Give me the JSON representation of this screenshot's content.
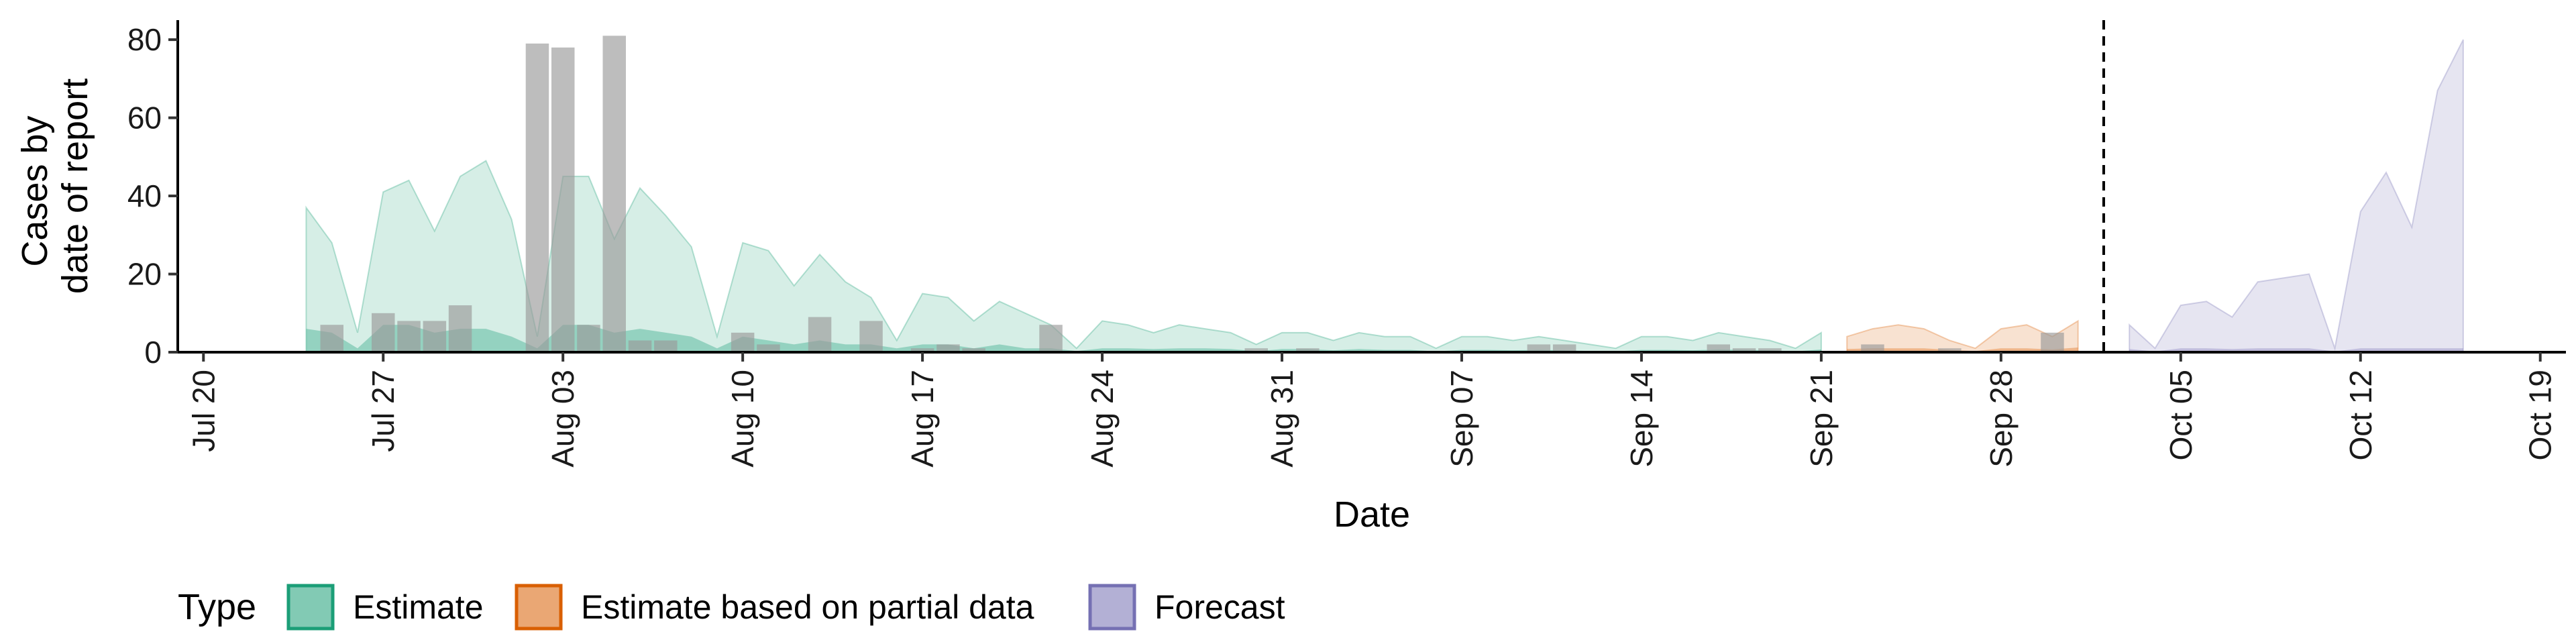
{
  "chart_data": {
    "type": "area",
    "title": "",
    "xlabel": "Date",
    "ylabel_lines": [
      "Cases by",
      "date of report"
    ],
    "ylim": [
      0,
      85
    ],
    "yticks": [
      0,
      20,
      40,
      60,
      80
    ],
    "xlim": [
      "2020-07-19",
      "2020-10-20"
    ],
    "x_tick_labels": [
      "Jul 20",
      "Jul 27",
      "Aug 03",
      "Aug 10",
      "Aug 17",
      "Aug 24",
      "Aug 31",
      "Sep 07",
      "Sep 14",
      "Sep 21",
      "Sep 28",
      "Oct 05",
      "Oct 12",
      "Oct 19"
    ],
    "x_tick_dates": [
      "2020-07-20",
      "2020-07-27",
      "2020-08-03",
      "2020-08-10",
      "2020-08-17",
      "2020-08-24",
      "2020-08-31",
      "2020-09-07",
      "2020-09-14",
      "2020-09-21",
      "2020-09-28",
      "2020-10-05",
      "2020-10-12",
      "2020-10-19"
    ],
    "forecast_date_line": "2020-10-02",
    "legend": {
      "title": "Type",
      "position": "bottom",
      "items": [
        {
          "label": "Estimate",
          "color": "#1b9e77"
        },
        {
          "label": "Estimate based on partial data",
          "color": "#d95f02"
        },
        {
          "label": "Forecast",
          "color": "#7570b3"
        }
      ]
    },
    "series": [
      {
        "type": "Estimate",
        "color": "#1b9e77",
        "dates": [
          "2020-07-24",
          "2020-07-25",
          "2020-07-26",
          "2020-07-27",
          "2020-07-28",
          "2020-07-29",
          "2020-07-30",
          "2020-07-31",
          "2020-08-01",
          "2020-08-02",
          "2020-08-03",
          "2020-08-04",
          "2020-08-05",
          "2020-08-06",
          "2020-08-07",
          "2020-08-08",
          "2020-08-09",
          "2020-08-10",
          "2020-08-11",
          "2020-08-12",
          "2020-08-13",
          "2020-08-14",
          "2020-08-15",
          "2020-08-16",
          "2020-08-17",
          "2020-08-18",
          "2020-08-19",
          "2020-08-20",
          "2020-08-21",
          "2020-08-22",
          "2020-08-23",
          "2020-08-24",
          "2020-08-25",
          "2020-08-26",
          "2020-08-27",
          "2020-08-28",
          "2020-08-29",
          "2020-08-30",
          "2020-08-31",
          "2020-09-01",
          "2020-09-02",
          "2020-09-03",
          "2020-09-04",
          "2020-09-05",
          "2020-09-06",
          "2020-09-07",
          "2020-09-08",
          "2020-09-09",
          "2020-09-10",
          "2020-09-11",
          "2020-09-12",
          "2020-09-13",
          "2020-09-14",
          "2020-09-15",
          "2020-09-16",
          "2020-09-17",
          "2020-09-18",
          "2020-09-19",
          "2020-09-20",
          "2020-09-21"
        ],
        "upper": [
          37,
          28,
          5,
          41,
          44,
          31,
          45,
          49,
          34,
          4,
          45,
          45,
          29,
          42,
          35,
          27,
          4,
          28,
          26,
          17,
          25,
          18,
          14,
          3,
          15,
          14,
          8,
          13,
          10,
          7,
          1,
          8,
          7,
          5,
          7,
          6,
          5,
          2,
          5,
          5,
          3,
          5,
          4,
          4,
          1,
          4,
          4,
          3,
          4,
          3,
          2,
          1,
          4,
          4,
          3,
          5,
          4,
          3,
          1,
          5
        ],
        "lower": [
          0,
          0,
          0,
          0,
          0,
          0,
          0,
          0,
          0,
          0,
          0,
          0,
          0,
          0,
          0,
          0,
          0,
          0,
          0,
          0,
          0,
          0,
          0,
          0,
          0,
          0,
          0,
          0,
          0,
          0,
          0,
          0,
          0,
          0,
          0,
          0,
          0,
          0,
          0,
          0,
          0,
          0,
          0,
          0,
          0,
          0,
          0,
          0,
          0,
          0,
          0,
          0,
          0,
          0,
          0,
          0,
          0,
          0,
          0,
          0
        ],
        "inner_upper": [
          6,
          5,
          1,
          7,
          7,
          5,
          6,
          6,
          4,
          1,
          7,
          7,
          5,
          6,
          5,
          4,
          1,
          4,
          3,
          2,
          3,
          2,
          2,
          1,
          2,
          2,
          1,
          2,
          1,
          1,
          0.3,
          1,
          1,
          0.8,
          1,
          1,
          0.8,
          0.3,
          0.8,
          0.8,
          0.5,
          0.8,
          0.6,
          0.6,
          0.2,
          0.6,
          0.6,
          0.5,
          0.6,
          0.5,
          0.3,
          0.2,
          0.6,
          0.6,
          0.5,
          0.7,
          0.6,
          0.5,
          0.2,
          0.7
        ]
      },
      {
        "type": "Estimate based on partial data",
        "color": "#d95f02",
        "dates": [
          "2020-09-22",
          "2020-09-23",
          "2020-09-24",
          "2020-09-25",
          "2020-09-26",
          "2020-09-27",
          "2020-09-28",
          "2020-09-29",
          "2020-09-30",
          "2020-10-01"
        ],
        "upper": [
          4,
          6,
          7,
          6,
          3,
          1,
          6,
          7,
          4,
          8
        ],
        "lower": [
          0,
          0,
          0,
          0,
          0,
          0,
          0,
          0,
          0,
          0
        ],
        "inner_upper": [
          0.8,
          1,
          1,
          1,
          0.6,
          0.3,
          1,
          1,
          0.7,
          1.2
        ]
      },
      {
        "type": "Forecast",
        "color": "#7570b3",
        "dates": [
          "2020-10-03",
          "2020-10-04",
          "2020-10-05",
          "2020-10-06",
          "2020-10-07",
          "2020-10-08",
          "2020-10-09",
          "2020-10-10",
          "2020-10-11",
          "2020-10-12",
          "2020-10-13",
          "2020-10-14",
          "2020-10-15",
          "2020-10-16"
        ],
        "upper": [
          7,
          1,
          12,
          13,
          9,
          18,
          19,
          20,
          1,
          36,
          46,
          32,
          67,
          80
        ],
        "lower": [
          0,
          0,
          0,
          0,
          0,
          0,
          0,
          0,
          0,
          0,
          0,
          0,
          0,
          0
        ],
        "inner_upper": [
          0.8,
          0.2,
          1,
          1,
          0.8,
          1,
          1,
          1,
          0.2,
          1,
          1,
          1,
          1,
          1
        ]
      }
    ],
    "reported_cases": {
      "color": "#999999",
      "dates": [
        "2020-07-25",
        "2020-07-27",
        "2020-07-28",
        "2020-07-29",
        "2020-07-30",
        "2020-08-02",
        "2020-08-03",
        "2020-08-04",
        "2020-08-05",
        "2020-08-06",
        "2020-08-07",
        "2020-08-08",
        "2020-08-10",
        "2020-08-11",
        "2020-08-13",
        "2020-08-15",
        "2020-08-17",
        "2020-08-18",
        "2020-08-19",
        "2020-08-22",
        "2020-08-30",
        "2020-09-01",
        "2020-09-10",
        "2020-09-11",
        "2020-09-17",
        "2020-09-18",
        "2020-09-19",
        "2020-09-23",
        "2020-09-26",
        "2020-09-30"
      ],
      "values": [
        7,
        10,
        8,
        8,
        12,
        79,
        78,
        7,
        81,
        3,
        3,
        0,
        5,
        2,
        9,
        8,
        1,
        2,
        1,
        7,
        1,
        1,
        2,
        2,
        2,
        1,
        1,
        2,
        1,
        5
      ]
    }
  }
}
